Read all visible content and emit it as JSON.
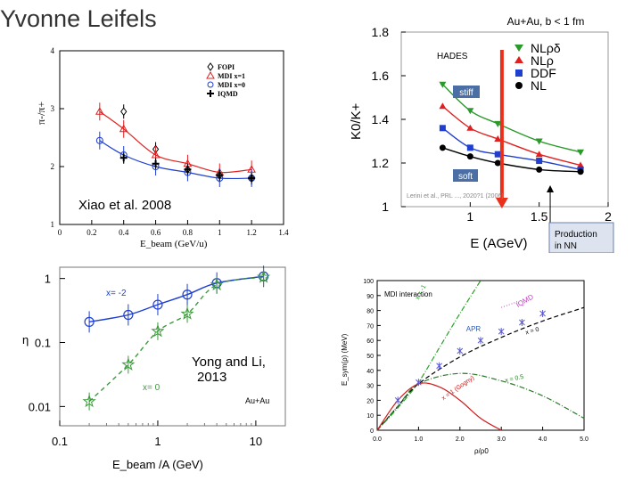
{
  "slide": {
    "author": "Yvonne Leifels"
  },
  "captions": {
    "panel_a": "Xiao et al. 2008",
    "panel_c_line1": "Yong and Li,",
    "panel_c_line2": "2013"
  },
  "colors": {
    "red": "#e02020",
    "blue": "#1f3fd0",
    "green": "#2a9a2a",
    "hades_red": "#e8301a"
  },
  "chart_data": [
    {
      "type": "scatter",
      "title": "",
      "xlabel": "E_beam (GeV/u)",
      "ylabel": "π-/π+",
      "xlim": [
        0,
        1.4
      ],
      "ylim": [
        1,
        4
      ],
      "xticks": [
        "0",
        "0.2",
        "0.4",
        "0.6",
        "0.8",
        "1",
        "1.2",
        "1.4"
      ],
      "yticks": [
        "1",
        "2",
        "3",
        "4"
      ],
      "legend": [
        "FOPI",
        "MDI x=1",
        "MDI x=0",
        "IQMD"
      ],
      "series": [
        {
          "name": "FOPI",
          "x": [
            0.4,
            0.6,
            0.8,
            1.0,
            1.2
          ],
          "y": [
            2.95,
            2.3,
            1.95,
            1.85,
            1.8
          ]
        },
        {
          "name": "MDI x=1",
          "x": [
            0.25,
            0.4,
            0.6,
            0.8,
            1.0,
            1.2
          ],
          "y": [
            2.95,
            2.65,
            2.2,
            2.05,
            1.9,
            1.95
          ]
        },
        {
          "name": "MDI x=0",
          "x": [
            0.25,
            0.4,
            0.6,
            0.8,
            1.0,
            1.2
          ],
          "y": [
            2.45,
            2.2,
            2.0,
            1.9,
            1.8,
            1.8
          ]
        },
        {
          "name": "IQMD",
          "x": [
            0.4,
            0.6,
            0.8,
            1.0,
            1.2
          ],
          "y": [
            2.15,
            2.05,
            1.95,
            1.85,
            1.8
          ]
        }
      ]
    },
    {
      "type": "line",
      "title": "Au+Au, b < 1 fm",
      "xlabel": "E     (AGeV)",
      "ylabel": "K0/K+",
      "xlim": [
        0.5,
        2.0
      ],
      "ylim": [
        1.0,
        1.8
      ],
      "xticks": [
        "1",
        "1.5",
        "2"
      ],
      "yticks": [
        "1",
        "1.2",
        "1.4",
        "1.6",
        "1.8"
      ],
      "labels": {
        "hades": "HADES",
        "stiff": "stiff",
        "soft": "soft",
        "ref": "Lerini et al., PRL ..., 2020?1 (2006)",
        "production": "Production",
        "production2": "in NN"
      },
      "hades_energy": 1.23,
      "series": [
        {
          "name": "NLρδ",
          "x": [
            0.8,
            1.0,
            1.2,
            1.5,
            1.8
          ],
          "y": [
            1.56,
            1.44,
            1.38,
            1.3,
            1.25
          ]
        },
        {
          "name": "NLρ",
          "x": [
            0.8,
            1.0,
            1.2,
            1.5,
            1.8
          ],
          "y": [
            1.46,
            1.36,
            1.31,
            1.24,
            1.19
          ]
        },
        {
          "name": "DDF",
          "x": [
            0.8,
            1.0,
            1.2,
            1.5,
            1.8
          ],
          "y": [
            1.36,
            1.27,
            1.24,
            1.21,
            1.17
          ]
        },
        {
          "name": "NL",
          "x": [
            0.8,
            1.0,
            1.2,
            1.5,
            1.8
          ],
          "y": [
            1.27,
            1.23,
            1.2,
            1.17,
            1.16
          ]
        }
      ]
    },
    {
      "type": "line",
      "title": "",
      "xlabel": "E_beam /A (GeV)",
      "ylabel": "η",
      "xscale": "log",
      "yscale": "log",
      "xlim": [
        0.1,
        20
      ],
      "ylim": [
        0.005,
        1.5
      ],
      "xticks": [
        "0.1",
        "1",
        "10"
      ],
      "yticks": [
        "0.01",
        "0.1",
        "1"
      ],
      "labels": {
        "x_minus_2": "x= -2",
        "x_0": "x= 0",
        "system": "Au+Au"
      },
      "series": [
        {
          "name": "x= -2",
          "x": [
            0.2,
            0.5,
            1.0,
            2.0,
            4.0,
            12.0
          ],
          "y": [
            0.21,
            0.27,
            0.39,
            0.56,
            0.85,
            1.08
          ]
        },
        {
          "name": "x= 0",
          "x": [
            0.2,
            0.5,
            1.0,
            2.0,
            4.0,
            12.0
          ],
          "y": [
            0.012,
            0.045,
            0.15,
            0.28,
            0.8,
            1.05
          ]
        }
      ]
    },
    {
      "type": "line",
      "title": "",
      "xlabel": "ρ/ρ0",
      "ylabel": "E_sym(ρ) (MeV)",
      "xlim": [
        0,
        5
      ],
      "ylim": [
        0,
        100
      ],
      "xticks": [
        "0.0",
        "1.0",
        "2.0",
        "3.0",
        "4.0",
        "5.0"
      ],
      "yticks": [
        "0",
        "10",
        "20",
        "30",
        "40",
        "50",
        "60",
        "70",
        "80",
        "90",
        "100"
      ],
      "labels": {
        "interaction": "MDI interaction",
        "x_m1": "x = -1",
        "apr": "APR",
        "iqmd": "IQMD",
        "x_0": "x = 0",
        "x_05": "x = 0.5",
        "x_1": "x = 1 (Gogny)"
      },
      "series": [
        {
          "name": "x = -1",
          "x": [
            0,
            0.5,
            1,
            1.5,
            2,
            2.5
          ],
          "y": [
            0,
            15,
            32,
            55,
            78,
            100
          ]
        },
        {
          "name": "x = 0",
          "x": [
            0,
            0.5,
            1,
            2,
            3,
            4,
            5
          ],
          "y": [
            0,
            16,
            31,
            49,
            62,
            73,
            82
          ]
        },
        {
          "name": "x = 0.5",
          "x": [
            0,
            0.5,
            1,
            2,
            3,
            4,
            5
          ],
          "y": [
            0,
            16,
            31,
            38,
            33,
            23,
            8
          ]
        },
        {
          "name": "x = 1 (Gogny)",
          "x": [
            0,
            0.5,
            1,
            1.5,
            2,
            2.5,
            3
          ],
          "y": [
            0,
            20,
            31,
            29,
            20,
            8,
            0
          ]
        },
        {
          "name": "APR",
          "x": [
            0.5,
            1.0,
            1.5,
            2.0,
            2.5,
            3.0,
            3.5,
            4.0
          ],
          "y": [
            20,
            32,
            43,
            53,
            60,
            66,
            72,
            78
          ]
        },
        {
          "name": "IQMD",
          "x": [
            3.0,
            3.2,
            3.4
          ],
          "y": [
            82,
            84,
            86
          ]
        }
      ]
    }
  ]
}
